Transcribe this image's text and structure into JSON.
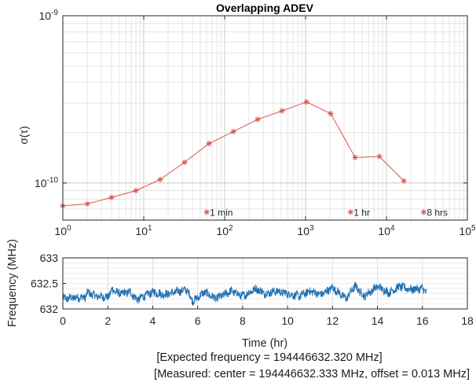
{
  "chart_data": [
    {
      "type": "scatter",
      "title": "Overlapping ADEV",
      "ylabel": "σ(τ)",
      "xscale": "log",
      "yscale": "log",
      "xlim": [
        1,
        100000
      ],
      "ylim": [
        6e-11,
        1e-09
      ],
      "xticks": [
        {
          "v": 1,
          "b": "10",
          "e": "0"
        },
        {
          "v": 10,
          "b": "10",
          "e": "1"
        },
        {
          "v": 100,
          "b": "10",
          "e": "2"
        },
        {
          "v": 1000,
          "b": "10",
          "e": "3"
        },
        {
          "v": 10000,
          "b": "10",
          "e": "4"
        },
        {
          "v": 100000,
          "b": "10",
          "e": "5"
        }
      ],
      "yticks": [
        {
          "v": 1e-10,
          "b": "10",
          "e": "-10"
        },
        {
          "v": 1e-09,
          "b": "10",
          "e": "-9"
        }
      ],
      "grid": true,
      "line_color": "#d9534f",
      "series": [
        {
          "x": [
            1,
            2,
            4,
            8,
            16,
            32,
            64,
            128,
            256,
            512,
            1024,
            2048,
            4096,
            8192,
            16384
          ],
          "y": [
            7.3e-11,
            7.5e-11,
            8.2e-11,
            9e-11,
            1.05e-10,
            1.33e-10,
            1.72e-10,
            2.03e-10,
            2.4e-10,
            2.7e-10,
            3.05e-10,
            2.6e-10,
            1.42e-10,
            1.44e-10,
            1.03e-10
          ]
        }
      ],
      "annotations": [
        {
          "text": "1 min",
          "x": 60
        },
        {
          "text": "1 hr",
          "x": 3600
        },
        {
          "text": "8 hrs",
          "x": 28800
        }
      ],
      "annotation_y": 6.7e-11
    },
    {
      "type": "line",
      "xlabel": "Time (hr)",
      "ylabel": "Frequency (MHz)",
      "xlim": [
        0,
        18
      ],
      "ylim": [
        632,
        633
      ],
      "xticks": [
        0,
        2,
        4,
        6,
        8,
        10,
        12,
        14,
        16,
        18
      ],
      "yticks": [
        "632",
        "632.5",
        "633"
      ],
      "grid": true,
      "line_color": "#1f6fb2",
      "x_end": 16.2,
      "series": [
        {
          "x": [
            0,
            0.5,
            1.0,
            1.1,
            1.5,
            2.0,
            2.2,
            2.5,
            3.0,
            3.3,
            3.7,
            4.0,
            4.5,
            5.0,
            5.5,
            5.8,
            6.3,
            6.8,
            7.5,
            8.0,
            8.6,
            9.0,
            9.5,
            10.0,
            10.5,
            11.0,
            11.5,
            12.0,
            12.6,
            13.0,
            13.4,
            14.0,
            14.5,
            15.0,
            15.5,
            16.0,
            16.2
          ],
          "y": [
            632.2,
            632.22,
            632.23,
            632.32,
            632.25,
            632.23,
            632.38,
            632.3,
            632.33,
            632.18,
            632.27,
            632.33,
            632.28,
            632.33,
            632.38,
            632.15,
            632.33,
            632.2,
            632.35,
            632.25,
            632.4,
            632.3,
            632.35,
            632.3,
            632.25,
            632.35,
            632.28,
            632.42,
            632.2,
            632.45,
            632.25,
            632.44,
            632.32,
            632.44,
            632.38,
            632.4,
            632.32
          ]
        }
      ]
    }
  ],
  "footer": {
    "line1": "[Expected frequency = 194446632.320 MHz]",
    "line2": "[Measured: center = 194446632.333 MHz, offset = 0.013 MHz]"
  }
}
